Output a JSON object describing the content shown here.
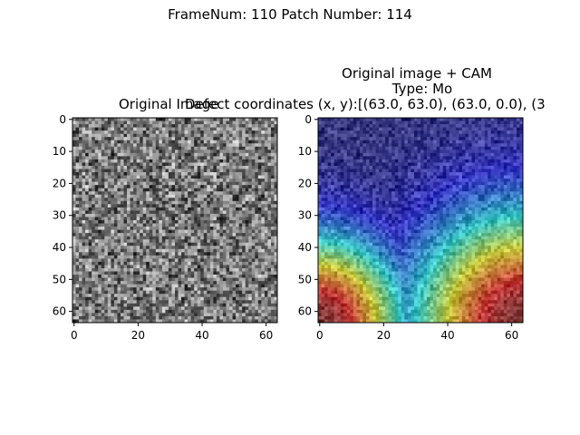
{
  "suptitle": "FrameNum: 110   Patch Number: 114",
  "chart_data": [
    {
      "type": "heatmap",
      "title": "Original Image",
      "colormap": "gray",
      "xlim": [
        0,
        63
      ],
      "ylim": [
        63,
        0
      ],
      "x_ticks": [
        0,
        20,
        40,
        60
      ],
      "y_ticks": [
        0,
        10,
        20,
        30,
        40,
        50,
        60
      ],
      "x_tick_labels": [
        "0",
        "20",
        "40",
        "60"
      ],
      "y_tick_labels": [
        "0",
        "10",
        "20",
        "30",
        "40",
        "50",
        "60"
      ]
    },
    {
      "type": "heatmap",
      "title_lines": [
        "Original image + CAM",
        "Type: Mo",
        "Defect coordinates (x, y):[(63.0, 63.0), (63.0, 0.0), (3"
      ],
      "colormap": "jet overlay on gray",
      "cam_peaks": [
        [
          63,
          63
        ],
        [
          0,
          63
        ]
      ],
      "xlim": [
        0,
        63
      ],
      "ylim": [
        63,
        0
      ],
      "x_ticks": [
        0,
        20,
        40,
        60
      ],
      "y_ticks": [
        0,
        10,
        20,
        30,
        40,
        50,
        60
      ],
      "x_tick_labels": [
        "0",
        "20",
        "40",
        "60"
      ],
      "y_tick_labels": [
        "0",
        "10",
        "20",
        "30",
        "40",
        "50",
        "60"
      ]
    }
  ]
}
